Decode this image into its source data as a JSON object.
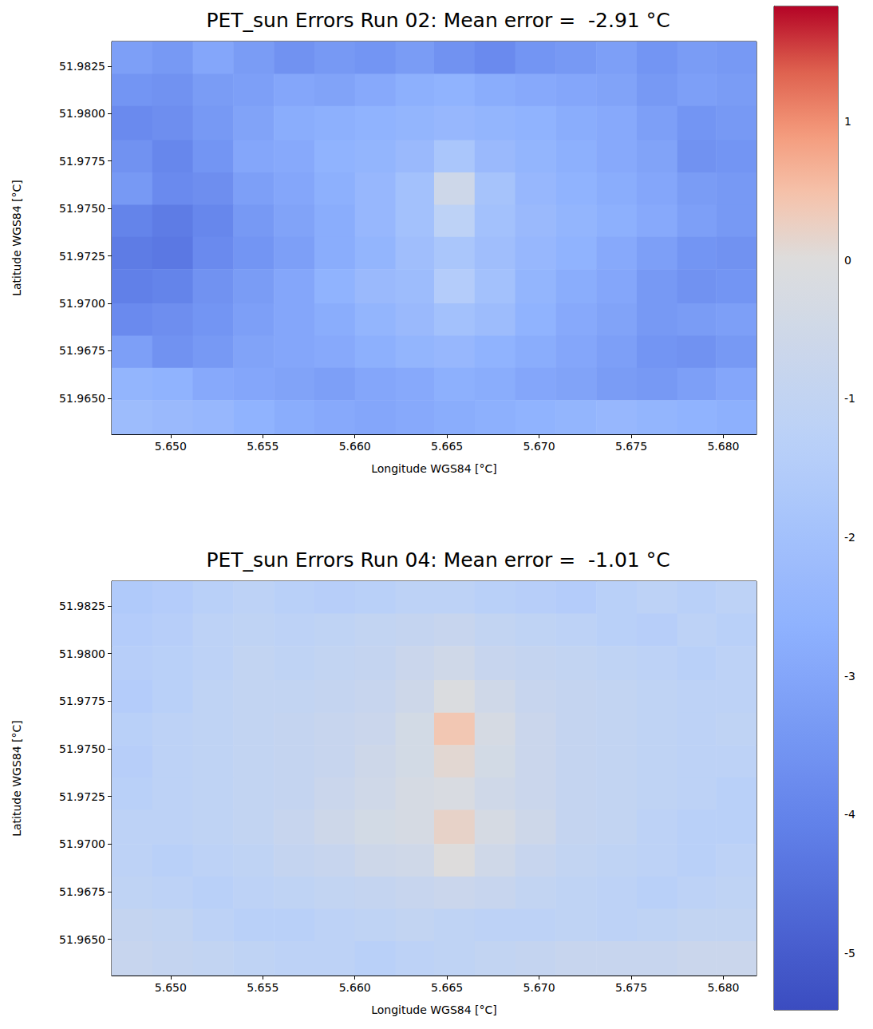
{
  "chart_data": [
    {
      "type": "heatmap",
      "title": "PET_sun Errors Run 02: Mean error =  -2.91 °C",
      "xlabel": "Longitude WGS84 [°C]",
      "ylabel": "Latitude WGS84 [°C]",
      "xlim": [
        5.6468,
        5.6818
      ],
      "ylim": [
        51.9631,
        51.9838
      ],
      "xticks": [
        {
          "value": 5.65,
          "label": "5.650"
        },
        5.655,
        {
          "value": 5.66,
          "label": "5.660"
        },
        5.665,
        {
          "value": 5.67,
          "label": "5.670"
        },
        5.675,
        {
          "value": 5.68,
          "label": "5.680"
        }
      ],
      "yticks": [
        {
          "value": 51.965,
          "label": "51.9650"
        },
        51.9675,
        {
          "value": 51.97,
          "label": "51.9700"
        },
        51.9725,
        {
          "value": 51.975,
          "label": "51.9750"
        },
        51.9775,
        {
          "value": 51.98,
          "label": "51.9800"
        },
        51.9825
      ],
      "x_edges": [
        5.6468,
        5.649,
        5.6512,
        5.6534,
        5.6556,
        5.6578,
        5.66,
        5.6622,
        5.6643,
        5.6665,
        5.6687,
        5.6709,
        5.6731,
        5.6753,
        5.6775,
        5.6796,
        5.6818
      ],
      "y_edges": [
        51.9838,
        51.9821,
        51.9804,
        51.9786,
        51.9769,
        51.9752,
        51.9735,
        51.9718,
        51.97,
        51.9683,
        51.9666,
        51.9649,
        51.9631
      ],
      "values": [
        [
          -3.2,
          -3.4,
          -3.0,
          -3.3,
          -3.6,
          -3.4,
          -3.5,
          -3.3,
          -3.6,
          -3.8,
          -3.5,
          -3.4,
          -3.2,
          -3.5,
          -3.3,
          -3.4
        ],
        [
          -3.5,
          -3.6,
          -3.3,
          -3.2,
          -3.0,
          -3.1,
          -2.9,
          -2.7,
          -2.6,
          -2.8,
          -2.9,
          -3.0,
          -3.1,
          -3.4,
          -3.2,
          -3.3
        ],
        [
          -3.8,
          -3.7,
          -3.4,
          -3.1,
          -2.8,
          -2.7,
          -2.6,
          -2.5,
          -2.4,
          -2.5,
          -2.6,
          -2.8,
          -2.9,
          -3.2,
          -3.5,
          -3.4
        ],
        [
          -3.6,
          -3.9,
          -3.5,
          -3.0,
          -2.9,
          -2.6,
          -2.5,
          -2.3,
          -1.8,
          -2.3,
          -2.5,
          -2.7,
          -2.9,
          -3.1,
          -3.6,
          -3.5
        ],
        [
          -3.4,
          -3.8,
          -3.7,
          -3.2,
          -3.0,
          -2.7,
          -2.4,
          -2.0,
          -0.6,
          -1.9,
          -2.4,
          -2.6,
          -2.8,
          -3.0,
          -3.3,
          -3.4
        ],
        [
          -4.0,
          -4.2,
          -3.9,
          -3.4,
          -3.1,
          -2.8,
          -2.4,
          -2.0,
          -1.2,
          -2.0,
          -2.3,
          -2.5,
          -2.7,
          -2.9,
          -3.2,
          -3.4
        ],
        [
          -4.2,
          -4.3,
          -3.8,
          -3.5,
          -3.2,
          -2.8,
          -2.5,
          -2.1,
          -1.8,
          -2.1,
          -2.4,
          -2.6,
          -2.9,
          -3.2,
          -3.5,
          -3.6
        ],
        [
          -4.1,
          -4.0,
          -3.6,
          -3.3,
          -3.0,
          -2.6,
          -2.3,
          -2.2,
          -1.5,
          -2.0,
          -2.5,
          -2.8,
          -3.0,
          -3.4,
          -3.6,
          -3.5
        ],
        [
          -3.8,
          -3.7,
          -3.5,
          -3.2,
          -3.0,
          -2.8,
          -2.5,
          -2.3,
          -2.0,
          -2.2,
          -2.6,
          -2.9,
          -3.1,
          -3.4,
          -3.3,
          -3.2
        ],
        [
          -3.2,
          -3.6,
          -3.4,
          -3.1,
          -3.0,
          -2.9,
          -2.7,
          -2.5,
          -2.4,
          -2.6,
          -2.8,
          -3.0,
          -3.2,
          -3.5,
          -3.6,
          -3.4
        ],
        [
          -2.5,
          -2.6,
          -2.9,
          -3.0,
          -3.1,
          -3.2,
          -3.0,
          -2.9,
          -2.7,
          -2.8,
          -3.0,
          -3.1,
          -3.3,
          -3.4,
          -3.2,
          -3.0
        ],
        [
          -2.2,
          -2.3,
          -2.4,
          -2.6,
          -2.8,
          -2.9,
          -3.0,
          -2.9,
          -2.8,
          -2.7,
          -2.6,
          -2.5,
          -2.4,
          -2.5,
          -2.6,
          -2.7
        ]
      ]
    },
    {
      "type": "heatmap",
      "title": "PET_sun Errors Run 04: Mean error =  -1.01 °C",
      "xlabel": "Longitude WGS84 [°C]",
      "ylabel": "Latitude WGS84 [°C]",
      "xlim": [
        5.6468,
        5.6818
      ],
      "ylim": [
        51.9631,
        51.9838
      ],
      "xticks": [
        {
          "value": 5.65,
          "label": "5.650"
        },
        5.655,
        {
          "value": 5.66,
          "label": "5.660"
        },
        5.665,
        {
          "value": 5.67,
          "label": "5.670"
        },
        5.675,
        {
          "value": 5.68,
          "label": "5.680"
        }
      ],
      "yticks": [
        {
          "value": 51.965,
          "label": "51.9650"
        },
        51.9675,
        {
          "value": 51.97,
          "label": "51.9700"
        },
        51.9725,
        {
          "value": 51.975,
          "label": "51.9750"
        },
        51.9775,
        {
          "value": 51.98,
          "label": "51.9800"
        },
        51.9825
      ],
      "x_edges": [
        5.6468,
        5.649,
        5.6512,
        5.6534,
        5.6556,
        5.6578,
        5.66,
        5.6622,
        5.6643,
        5.6665,
        5.6687,
        5.6709,
        5.6731,
        5.6753,
        5.6775,
        5.6796,
        5.6818
      ],
      "y_edges": [
        51.9838,
        51.9821,
        51.9804,
        51.9786,
        51.9769,
        51.9752,
        51.9735,
        51.9718,
        51.97,
        51.9683,
        51.9666,
        51.9649,
        51.9631
      ],
      "values": [
        [
          -1.6,
          -1.5,
          -1.3,
          -1.2,
          -1.3,
          -1.4,
          -1.3,
          -1.2,
          -1.2,
          -1.3,
          -1.4,
          -1.5,
          -1.3,
          -1.2,
          -1.3,
          -1.2
        ],
        [
          -1.5,
          -1.4,
          -1.2,
          -1.1,
          -1.2,
          -1.1,
          -1.0,
          -0.9,
          -0.8,
          -1.0,
          -1.1,
          -1.2,
          -1.3,
          -1.4,
          -1.2,
          -1.3
        ],
        [
          -1.4,
          -1.3,
          -1.2,
          -1.0,
          -1.1,
          -1.0,
          -0.9,
          -0.7,
          -0.5,
          -0.8,
          -0.9,
          -1.0,
          -1.1,
          -1.2,
          -1.3,
          -1.2
        ],
        [
          -1.5,
          -1.3,
          -1.1,
          -1.0,
          -1.0,
          -0.9,
          -0.8,
          -0.6,
          -0.1,
          -0.5,
          -0.8,
          -0.9,
          -1.0,
          -1.1,
          -1.2,
          -1.2
        ],
        [
          -1.3,
          -1.2,
          -1.1,
          -1.0,
          -0.9,
          -0.8,
          -0.7,
          -0.4,
          0.4,
          -0.3,
          -0.7,
          -0.9,
          -1.0,
          -1.1,
          -1.2,
          -1.1
        ],
        [
          -1.4,
          -1.2,
          -1.1,
          -1.0,
          -0.9,
          -0.8,
          -0.6,
          -0.4,
          0.1,
          -0.4,
          -0.7,
          -0.9,
          -1.0,
          -1.1,
          -1.2,
          -1.2
        ],
        [
          -1.3,
          -1.2,
          -1.1,
          -1.0,
          -0.9,
          -0.7,
          -0.5,
          -0.3,
          -0.2,
          -0.5,
          -0.7,
          -0.9,
          -1.0,
          -1.1,
          -1.2,
          -1.3
        ],
        [
          -1.2,
          -1.2,
          -1.1,
          -1.0,
          -0.8,
          -0.6,
          -0.4,
          -0.3,
          0.2,
          -0.3,
          -0.6,
          -0.9,
          -1.0,
          -1.2,
          -1.3,
          -1.3
        ],
        [
          -1.2,
          -1.3,
          -1.2,
          -1.1,
          -0.9,
          -0.8,
          -0.6,
          -0.5,
          0.0,
          -0.5,
          -0.8,
          -1.0,
          -1.1,
          -1.2,
          -1.3,
          -1.2
        ],
        [
          -1.1,
          -1.2,
          -1.3,
          -1.2,
          -1.1,
          -1.0,
          -0.9,
          -0.8,
          -0.7,
          -0.8,
          -1.0,
          -1.1,
          -1.2,
          -1.3,
          -1.2,
          -1.1
        ],
        [
          -0.9,
          -1.0,
          -1.2,
          -1.3,
          -1.3,
          -1.2,
          -1.1,
          -1.0,
          -1.1,
          -1.2,
          -1.2,
          -1.1,
          -1.2,
          -1.1,
          -1.0,
          -1.0
        ],
        [
          -0.8,
          -0.9,
          -1.0,
          -1.1,
          -1.2,
          -1.2,
          -1.3,
          -1.2,
          -1.1,
          -1.0,
          -0.9,
          -0.8,
          -0.8,
          -0.8,
          -0.7,
          -0.7
        ]
      ]
    },
    {
      "type": "colorbar",
      "zlim": [
        -5.41,
        1.83
      ],
      "zticks": [
        1,
        0,
        -1,
        -2,
        -3,
        -4,
        -5
      ]
    }
  ]
}
